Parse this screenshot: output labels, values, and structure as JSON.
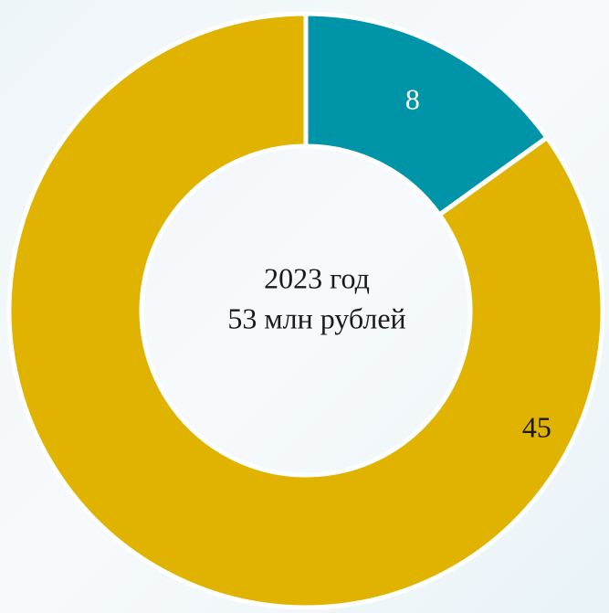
{
  "chart_data": {
    "type": "donut",
    "values": [
      8,
      45
    ],
    "colors": [
      "#0094a8",
      "#dfb300"
    ],
    "label_colors": [
      "#ffffff",
      "#1a1a1a"
    ],
    "annotations": [
      "2023 год",
      "53 млн рублей"
    ]
  }
}
